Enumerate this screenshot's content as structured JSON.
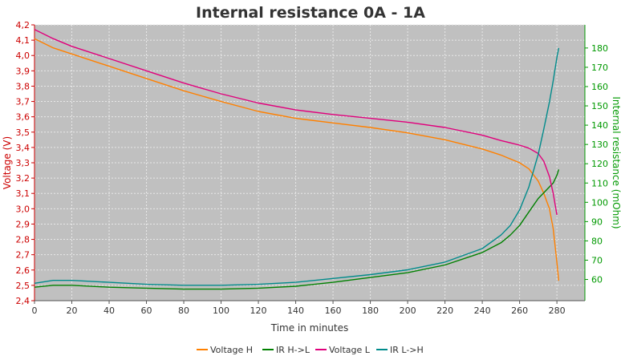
{
  "chart_data": {
    "type": "line",
    "title": "Internal resistance  0A - 1A",
    "xlabel": "Time in minutes",
    "ylabel_left": "Voltage (V)",
    "ylabel_right": "Internal resistance (mOhm)",
    "xlim": [
      0,
      295
    ],
    "ylim_left": [
      2.4,
      4.2
    ],
    "ylim_right": [
      49,
      192
    ],
    "x_ticks": [
      0,
      20,
      40,
      60,
      80,
      100,
      120,
      140,
      160,
      180,
      200,
      220,
      240,
      260,
      280
    ],
    "y_left_ticks": [
      "2,4",
      "2,5",
      "2,6",
      "2,7",
      "2,8",
      "2,9",
      "3,0",
      "3,1",
      "3,2",
      "3,3",
      "3,4",
      "3,5",
      "3,6",
      "3,7",
      "3,8",
      "3,9",
      "4,0",
      "4,1",
      "4,2"
    ],
    "y_right_ticks": [
      60,
      70,
      80,
      90,
      100,
      110,
      120,
      130,
      140,
      150,
      160,
      170,
      180
    ],
    "grid": true,
    "legend_position": "bottom",
    "colors": {
      "plot_bg": "#c0c0c0",
      "grid": "#e8e8e8",
      "left_axis": "#cc0000",
      "right_axis": "#009900",
      "voltage_h": "#ff8000",
      "ir_h_l": "#008000",
      "voltage_l": "#e0007c",
      "ir_l_h": "#008b8b"
    },
    "series": [
      {
        "name": "Voltage H",
        "axis": "left",
        "color": "#ff8000",
        "x": [
          0,
          10,
          20,
          40,
          60,
          80,
          100,
          120,
          140,
          160,
          180,
          200,
          220,
          240,
          250,
          260,
          265,
          270,
          273,
          276,
          278,
          280,
          281
        ],
        "values": [
          4.11,
          4.05,
          4.01,
          3.93,
          3.85,
          3.77,
          3.7,
          3.635,
          3.59,
          3.56,
          3.53,
          3.495,
          3.45,
          3.39,
          3.35,
          3.3,
          3.26,
          3.18,
          3.1,
          3.0,
          2.87,
          2.65,
          2.53
        ]
      },
      {
        "name": "IR H->L",
        "axis": "right",
        "color": "#008000",
        "x": [
          0,
          10,
          20,
          40,
          60,
          80,
          100,
          120,
          140,
          160,
          180,
          200,
          220,
          240,
          250,
          255,
          260,
          265,
          270,
          275,
          278,
          280,
          281
        ],
        "values": [
          56,
          57,
          57,
          56,
          55.5,
          55,
          55,
          55.5,
          56.5,
          58.5,
          61,
          63.5,
          67.5,
          74,
          79,
          83,
          88,
          95,
          102,
          107,
          110,
          114,
          117
        ]
      },
      {
        "name": "Voltage L",
        "axis": "left",
        "color": "#e0007c",
        "x": [
          0,
          10,
          20,
          40,
          60,
          80,
          100,
          120,
          140,
          160,
          180,
          200,
          220,
          240,
          250,
          260,
          265,
          270,
          273,
          276,
          278,
          280
        ],
        "values": [
          4.17,
          4.11,
          4.06,
          3.98,
          3.9,
          3.82,
          3.75,
          3.69,
          3.645,
          3.615,
          3.59,
          3.565,
          3.53,
          3.48,
          3.445,
          3.415,
          3.395,
          3.36,
          3.31,
          3.21,
          3.1,
          2.96
        ]
      },
      {
        "name": "IR L->H",
        "axis": "right",
        "color": "#008b8b",
        "x": [
          0,
          10,
          20,
          40,
          60,
          80,
          100,
          120,
          140,
          160,
          180,
          200,
          220,
          240,
          250,
          255,
          260,
          265,
          270,
          273,
          276,
          278,
          280,
          281
        ],
        "values": [
          58,
          59.5,
          59.5,
          58.5,
          57.5,
          57,
          57,
          57.5,
          58.5,
          60.5,
          62.5,
          65,
          69,
          76,
          83,
          88,
          96,
          108,
          125,
          138,
          152,
          163,
          175,
          180
        ]
      }
    ]
  }
}
